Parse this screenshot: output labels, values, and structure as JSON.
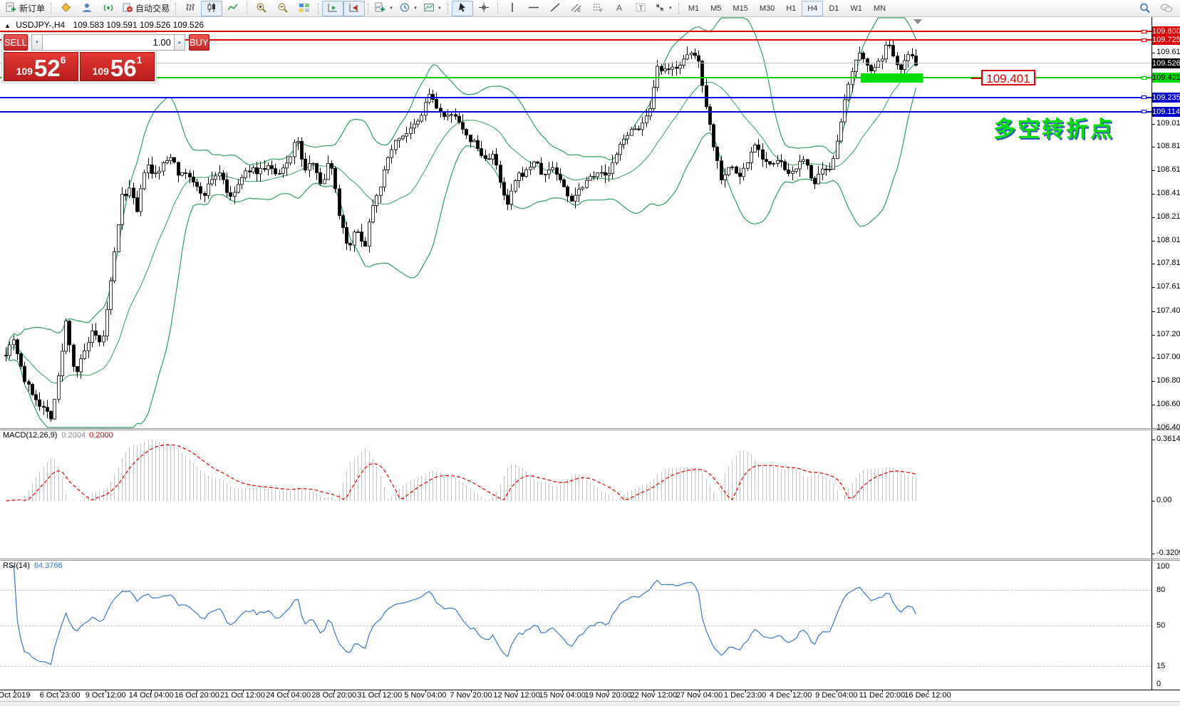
{
  "toolbar": {
    "new_order_label": "新订单",
    "autotrading_label": "自动交易",
    "timeframes": [
      "M1",
      "M5",
      "M15",
      "M30",
      "H1",
      "H4",
      "D1",
      "W1",
      "MN"
    ],
    "active_timeframe": "H4"
  },
  "chart": {
    "title_symbol": "USDJPY-,H4",
    "title_ohlc": "109.583 109.591 109.526 109.526",
    "callout": "109.401",
    "annotation": "多空转折点",
    "annotation_color": "#00e000",
    "highlight_zone_price": "109.401"
  },
  "trade_panel": {
    "sell_label": "SELL",
    "buy_label": "BUY",
    "volume": "1.00",
    "sell_price": {
      "prefix": "109",
      "big": "52",
      "sup": "6"
    },
    "buy_price": {
      "prefix": "109",
      "big": "56",
      "sup": "1"
    },
    "accent_red": "#d51f1f"
  },
  "price_axis": {
    "ticks": [
      "109.615",
      "109.410",
      "109.210",
      "109.010",
      "108.810",
      "108.610",
      "108.410",
      "108.210",
      "108.010",
      "107.810",
      "107.610",
      "107.405",
      "107.205",
      "107.005",
      "106.805",
      "106.605",
      "106.405"
    ],
    "levels": [
      {
        "label": "109.800",
        "price": 109.8,
        "line_color": "#e00000",
        "badge_bg": "#e00000",
        "badge_fg": "#ffffff",
        "width": 2,
        "handle": true
      },
      {
        "label": "109.725",
        "price": 109.725,
        "line_color": "#e00000",
        "badge_bg": "#e00000",
        "badge_fg": "#ffffff",
        "width": 2,
        "handle": true
      },
      {
        "label": "109.526",
        "price": 109.526,
        "line_color": "#bdbdbd",
        "badge_bg": "#000000",
        "badge_fg": "#ffffff",
        "width": 1,
        "handle": false
      },
      {
        "label": "109.401",
        "price": 109.401,
        "line_color": "#00cc00",
        "badge_bg": "#00d800",
        "badge_fg": "#000000",
        "width": 2,
        "handle": true
      },
      {
        "label": "109.235",
        "price": 109.235,
        "line_color": "#0000d8",
        "badge_bg": "#0000cc",
        "badge_fg": "#ffffff",
        "width": 2,
        "handle": true
      },
      {
        "label": "109.114",
        "price": 109.114,
        "line_color": "#0000d8",
        "badge_bg": "#0000cc",
        "badge_fg": "#ffffff",
        "width": 2,
        "handle": true
      }
    ]
  },
  "macd": {
    "label": "MACD(12,26,9)",
    "value1": "0.2004",
    "value2": "0.2000",
    "axis": [
      "0.3614",
      "0.00",
      "-0.3209"
    ]
  },
  "rsi": {
    "label": "RSI(14)",
    "value": "64.3766",
    "axis": [
      "100",
      "80",
      "50",
      "15",
      "0"
    ],
    "levels": [
      80,
      50,
      15
    ]
  },
  "dates": [
    "Oct 2019",
    "6 Oct 23:00",
    "9 Oct 12:00",
    "14 Oct 04:00",
    "16 Oct 20:00",
    "21 Oct 12:00",
    "24 Oct 04:00",
    "28 Oct 20:00",
    "31 Oct 12:00",
    "5 Nov 04:00",
    "7 Nov 20:00",
    "12 Nov 12:00",
    "15 Nov 04:00",
    "19 Nov 20:00",
    "22 Nov 12:00",
    "27 Nov 04:00",
    "1 Dec 23:00",
    "4 Dec 12:00",
    "9 Dec 04:00",
    "11 Dec 20:00",
    "16 Dec 12:00"
  ],
  "chart_data": {
    "type": "candlestick",
    "symbol": "USDJPY",
    "timeframe": "H4",
    "ohlc_display": {
      "open": 109.583,
      "high": 109.591,
      "low": 109.526,
      "close": 109.526
    },
    "price_max_visible": 109.92,
    "price_min_visible": 106.33,
    "candles_count": 244,
    "indicators": [
      {
        "name": "Bollinger Bands",
        "color": "#2f9e63"
      },
      {
        "name": "MACD",
        "params": [
          12,
          26,
          9
        ],
        "values": [
          0.2004,
          0.2
        ],
        "range": [
          -0.3209,
          0.3614
        ]
      },
      {
        "name": "RSI",
        "params": [
          14
        ],
        "value": 64.3766,
        "range": [
          0,
          100
        ]
      }
    ],
    "close_path": [
      [
        0.0,
        107.05
      ],
      [
        0.008,
        107.18
      ],
      [
        0.021,
        106.8
      ],
      [
        0.036,
        106.62
      ],
      [
        0.05,
        106.5
      ],
      [
        0.059,
        106.9
      ],
      [
        0.066,
        107.32
      ],
      [
        0.076,
        106.85
      ],
      [
        0.086,
        107.05
      ],
      [
        0.095,
        107.22
      ],
      [
        0.105,
        107.1
      ],
      [
        0.112,
        107.45
      ],
      [
        0.119,
        107.88
      ],
      [
        0.127,
        108.38
      ],
      [
        0.136,
        108.45
      ],
      [
        0.144,
        108.25
      ],
      [
        0.154,
        108.68
      ],
      [
        0.162,
        108.55
      ],
      [
        0.172,
        108.65
      ],
      [
        0.183,
        108.75
      ],
      [
        0.191,
        108.55
      ],
      [
        0.199,
        108.6
      ],
      [
        0.207,
        108.48
      ],
      [
        0.217,
        108.4
      ],
      [
        0.227,
        108.55
      ],
      [
        0.236,
        108.6
      ],
      [
        0.246,
        108.35
      ],
      [
        0.256,
        108.5
      ],
      [
        0.266,
        108.62
      ],
      [
        0.277,
        108.6
      ],
      [
        0.288,
        108.65
      ],
      [
        0.299,
        108.55
      ],
      [
        0.311,
        108.7
      ],
      [
        0.319,
        108.9
      ],
      [
        0.329,
        108.6
      ],
      [
        0.338,
        108.7
      ],
      [
        0.348,
        108.45
      ],
      [
        0.356,
        108.75
      ],
      [
        0.361,
        108.5
      ],
      [
        0.366,
        108.25
      ],
      [
        0.376,
        107.95
      ],
      [
        0.385,
        108.1
      ],
      [
        0.395,
        107.97
      ],
      [
        0.402,
        108.3
      ],
      [
        0.413,
        108.52
      ],
      [
        0.423,
        108.8
      ],
      [
        0.433,
        108.9
      ],
      [
        0.444,
        108.95
      ],
      [
        0.456,
        109.05
      ],
      [
        0.464,
        109.28
      ],
      [
        0.473,
        109.15
      ],
      [
        0.483,
        109.05
      ],
      [
        0.495,
        109.1
      ],
      [
        0.504,
        108.9
      ],
      [
        0.515,
        108.85
      ],
      [
        0.525,
        108.7
      ],
      [
        0.536,
        108.75
      ],
      [
        0.543,
        108.5
      ],
      [
        0.551,
        108.3
      ],
      [
        0.561,
        108.55
      ],
      [
        0.572,
        108.6
      ],
      [
        0.581,
        108.7
      ],
      [
        0.591,
        108.55
      ],
      [
        0.6,
        108.65
      ],
      [
        0.611,
        108.5
      ],
      [
        0.62,
        108.35
      ],
      [
        0.63,
        108.45
      ],
      [
        0.64,
        108.55
      ],
      [
        0.65,
        108.6
      ],
      [
        0.66,
        108.55
      ],
      [
        0.669,
        108.7
      ],
      [
        0.679,
        108.9
      ],
      [
        0.689,
        108.95
      ],
      [
        0.699,
        109.0
      ],
      [
        0.708,
        109.12
      ],
      [
        0.716,
        109.48
      ],
      [
        0.726,
        109.45
      ],
      [
        0.736,
        109.5
      ],
      [
        0.745,
        109.55
      ],
      [
        0.755,
        109.62
      ],
      [
        0.761,
        109.55
      ],
      [
        0.769,
        109.2
      ],
      [
        0.777,
        108.85
      ],
      [
        0.786,
        108.55
      ],
      [
        0.797,
        108.65
      ],
      [
        0.806,
        108.55
      ],
      [
        0.816,
        108.7
      ],
      [
        0.823,
        108.85
      ],
      [
        0.833,
        108.7
      ],
      [
        0.843,
        108.65
      ],
      [
        0.851,
        108.7
      ],
      [
        0.859,
        108.55
      ],
      [
        0.869,
        108.65
      ],
      [
        0.879,
        108.7
      ],
      [
        0.888,
        108.48
      ],
      [
        0.896,
        108.6
      ],
      [
        0.906,
        108.6
      ],
      [
        0.914,
        108.9
      ],
      [
        0.922,
        109.2
      ],
      [
        0.93,
        109.45
      ],
      [
        0.937,
        109.6
      ],
      [
        0.945,
        109.55
      ],
      [
        0.953,
        109.45
      ],
      [
        0.961,
        109.55
      ],
      [
        0.969,
        109.7
      ],
      [
        0.976,
        109.6
      ],
      [
        0.982,
        109.48
      ],
      [
        0.988,
        109.55
      ],
      [
        0.994,
        109.62
      ],
      [
        1.0,
        109.53
      ]
    ]
  }
}
